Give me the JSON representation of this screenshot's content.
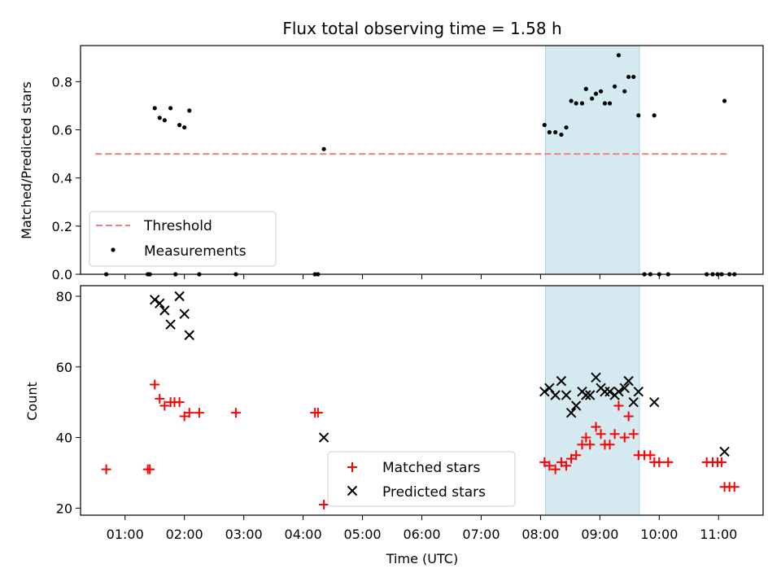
{
  "chart_data": {
    "type": "scatter",
    "title": "Flux total observing time = 1.58 h",
    "xlabel": "Time (UTC)",
    "xlim": [
      "00:15",
      "11:45"
    ],
    "xticks": [
      "01:00",
      "02:00",
      "03:00",
      "04:00",
      "05:00",
      "06:00",
      "07:00",
      "08:00",
      "09:00",
      "10:00",
      "11:00"
    ],
    "highlight_span": [
      "08:05",
      "09:40"
    ],
    "highlight_color": "#d4eaf0",
    "panels": [
      {
        "id": "ratio",
        "ylabel": "Matched/Predicted stars",
        "ylim": [
          0,
          0.95
        ],
        "yticks": [
          "0.0",
          "0.2",
          "0.4",
          "0.6",
          "0.8"
        ],
        "threshold": {
          "name": "Threshold",
          "value": 0.5,
          "from": "00:30",
          "to": "11:10",
          "color": "#f08080"
        },
        "legend": {
          "placement": "lower-left",
          "entries": [
            "Threshold",
            "Measurements"
          ]
        },
        "series": [
          {
            "name": "Measurements",
            "marker": "dot",
            "color": "#000000",
            "points": [
              [
                "00:41",
                0.0
              ],
              [
                "01:23",
                0.0
              ],
              [
                "01:25",
                0.0
              ],
              [
                "01:51",
                0.0
              ],
              [
                "02:15",
                0.0
              ],
              [
                "02:52",
                0.0
              ],
              [
                "04:12",
                0.0
              ],
              [
                "04:15",
                0.0
              ],
              [
                "01:30",
                0.69
              ],
              [
                "01:35",
                0.65
              ],
              [
                "01:40",
                0.64
              ],
              [
                "01:46",
                0.69
              ],
              [
                "01:55",
                0.62
              ],
              [
                "02:00",
                0.61
              ],
              [
                "02:05",
                0.68
              ],
              [
                "04:21",
                0.52
              ],
              [
                "08:04",
                0.62
              ],
              [
                "08:09",
                0.59
              ],
              [
                "08:15",
                0.59
              ],
              [
                "08:21",
                0.58
              ],
              [
                "08:26",
                0.61
              ],
              [
                "08:31",
                0.72
              ],
              [
                "08:36",
                0.71
              ],
              [
                "08:42",
                0.71
              ],
              [
                "08:46",
                0.77
              ],
              [
                "08:52",
                0.73
              ],
              [
                "08:56",
                0.75
              ],
              [
                "09:01",
                0.76
              ],
              [
                "09:05",
                0.71
              ],
              [
                "09:10",
                0.71
              ],
              [
                "09:15",
                0.78
              ],
              [
                "09:19",
                0.91
              ],
              [
                "09:25",
                0.76
              ],
              [
                "09:29",
                0.82
              ],
              [
                "09:34",
                0.82
              ],
              [
                "09:39",
                0.66
              ],
              [
                "09:55",
                0.66
              ],
              [
                "09:45",
                0.0
              ],
              [
                "09:51",
                0.0
              ],
              [
                "10:00",
                0.0
              ],
              [
                "10:09",
                0.0
              ],
              [
                "10:48",
                0.0
              ],
              [
                "10:54",
                0.0
              ],
              [
                "10:59",
                0.0
              ],
              [
                "11:03",
                0.0
              ],
              [
                "11:11",
                0.0
              ],
              [
                "11:16",
                0.0
              ],
              [
                "11:06",
                0.72
              ]
            ]
          }
        ]
      },
      {
        "id": "count",
        "ylabel": "Count",
        "ylim": [
          18,
          83
        ],
        "yticks": [
          "20",
          "40",
          "60",
          "80"
        ],
        "legend": {
          "placement": "lower-center",
          "entries": [
            "Matched stars",
            "Predicted stars"
          ]
        },
        "series": [
          {
            "name": "Matched stars",
            "marker": "plus",
            "color": "#ff0000",
            "points": [
              [
                "00:41",
                31
              ],
              [
                "01:23",
                31
              ],
              [
                "01:25",
                31
              ],
              [
                "01:30",
                55
              ],
              [
                "01:35",
                51
              ],
              [
                "01:40",
                49
              ],
              [
                "01:46",
                50
              ],
              [
                "01:50",
                50
              ],
              [
                "01:55",
                50
              ],
              [
                "02:00",
                46
              ],
              [
                "02:05",
                47
              ],
              [
                "02:15",
                47
              ],
              [
                "02:52",
                47
              ],
              [
                "04:12",
                47
              ],
              [
                "04:15",
                47
              ],
              [
                "04:21",
                21
              ],
              [
                "08:04",
                33
              ],
              [
                "08:09",
                32
              ],
              [
                "08:15",
                31
              ],
              [
                "08:21",
                33
              ],
              [
                "08:26",
                32
              ],
              [
                "08:31",
                34
              ],
              [
                "08:36",
                35
              ],
              [
                "08:42",
                38
              ],
              [
                "08:46",
                40
              ],
              [
                "08:50",
                38
              ],
              [
                "08:56",
                43
              ],
              [
                "09:01",
                41
              ],
              [
                "09:05",
                38
              ],
              [
                "09:10",
                38
              ],
              [
                "09:15",
                41
              ],
              [
                "09:19",
                49
              ],
              [
                "09:25",
                40
              ],
              [
                "09:29",
                46
              ],
              [
                "09:34",
                41
              ],
              [
                "09:39",
                35
              ],
              [
                "09:45",
                35
              ],
              [
                "09:51",
                35
              ],
              [
                "09:55",
                33
              ],
              [
                "10:00",
                33
              ],
              [
                "10:09",
                33
              ],
              [
                "10:48",
                33
              ],
              [
                "10:54",
                33
              ],
              [
                "10:59",
                33
              ],
              [
                "11:03",
                33
              ],
              [
                "11:06",
                26
              ],
              [
                "11:11",
                26
              ],
              [
                "11:16",
                26
              ]
            ]
          },
          {
            "name": "Predicted stars",
            "marker": "x",
            "color": "#000000",
            "points": [
              [
                "01:30",
                79
              ],
              [
                "01:35",
                78
              ],
              [
                "01:40",
                76
              ],
              [
                "01:46",
                72
              ],
              [
                "01:55",
                80
              ],
              [
                "02:00",
                75
              ],
              [
                "02:05",
                69
              ],
              [
                "04:21",
                40
              ],
              [
                "08:04",
                53
              ],
              [
                "08:09",
                54
              ],
              [
                "08:15",
                52
              ],
              [
                "08:21",
                56
              ],
              [
                "08:26",
                52
              ],
              [
                "08:31",
                47
              ],
              [
                "08:36",
                49
              ],
              [
                "08:42",
                53
              ],
              [
                "08:46",
                52
              ],
              [
                "08:50",
                52
              ],
              [
                "08:56",
                57
              ],
              [
                "09:01",
                54
              ],
              [
                "09:05",
                53
              ],
              [
                "09:10",
                53
              ],
              [
                "09:15",
                52
              ],
              [
                "09:19",
                53
              ],
              [
                "09:25",
                54
              ],
              [
                "09:29",
                56
              ],
              [
                "09:34",
                50
              ],
              [
                "09:39",
                53
              ],
              [
                "09:55",
                50
              ],
              [
                "11:06",
                36
              ]
            ]
          }
        ]
      }
    ]
  }
}
